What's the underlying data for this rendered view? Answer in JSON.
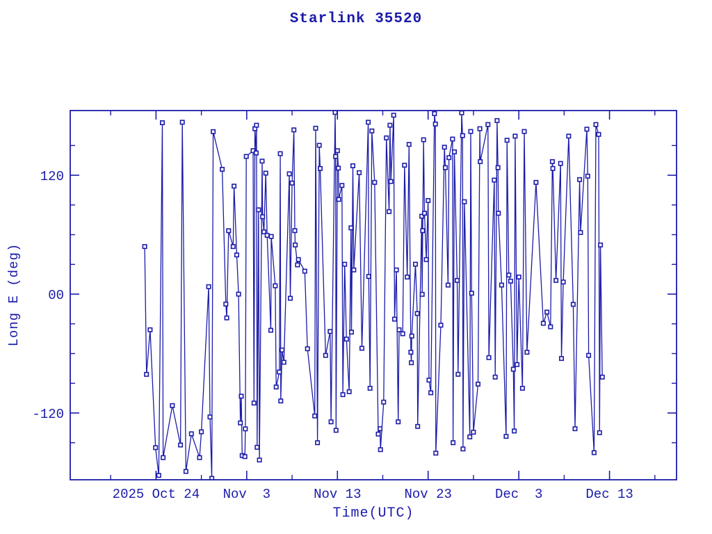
{
  "page": {
    "background": "#ffffff",
    "ink": "#1b1baa"
  },
  "chart_data": {
    "type": "line",
    "title": "Starlink 35520",
    "xlabel": "Time(UTC)",
    "ylabel": "Long E (deg)",
    "x_unit": "days relative to 2025 Oct 24",
    "xlim": [
      -9.46,
      57.39
    ],
    "ylim": [
      -187.4,
      185.3
    ],
    "grid": false,
    "legend": "none",
    "marker": "open-square",
    "x_major_ticks": [
      {
        "day": 0,
        "label": "2025 Oct 24"
      },
      {
        "day": 10,
        "label": "Nov  3"
      },
      {
        "day": 20,
        "label": "Nov 13"
      },
      {
        "day": 30,
        "label": "Nov 23"
      },
      {
        "day": 40,
        "label": "Dec  3"
      },
      {
        "day": 50,
        "label": "Dec 13"
      }
    ],
    "x_minor_ticks": [
      -5,
      5,
      15,
      25,
      35,
      45,
      55
    ],
    "y_major_ticks": [
      {
        "value": 120,
        "label": "120"
      },
      {
        "value": 0,
        "label": "00"
      },
      {
        "value": -120,
        "label": "-120"
      }
    ],
    "y_minor_ticks": [
      150,
      90,
      60,
      30,
      -30,
      -60,
      -90,
      -150
    ],
    "points": [
      [
        -1.25,
        48
      ],
      [
        -1.05,
        -81
      ],
      [
        -0.65,
        -36
      ],
      [
        -0.05,
        -155
      ],
      [
        0.3,
        -183
      ],
      [
        0.7,
        173
      ],
      [
        0.78,
        -165
      ],
      [
        1.8,
        -112.5
      ],
      [
        2.7,
        -152.3
      ],
      [
        2.9,
        173.5
      ],
      [
        3.3,
        -179
      ],
      [
        3.9,
        -141
      ],
      [
        4.8,
        -165
      ],
      [
        5.0,
        -139
      ],
      [
        5.8,
        7.5
      ],
      [
        5.95,
        -124
      ],
      [
        6.15,
        -186
      ],
      [
        6.3,
        164
      ],
      [
        7.3,
        126
      ],
      [
        7.7,
        -10
      ],
      [
        7.8,
        -24
      ],
      [
        8.0,
        64
      ],
      [
        8.5,
        48
      ],
      [
        8.6,
        109
      ],
      [
        8.9,
        39.5
      ],
      [
        9.1,
        0
      ],
      [
        9.3,
        -130
      ],
      [
        9.4,
        -103
      ],
      [
        9.5,
        -163
      ],
      [
        9.8,
        -164
      ],
      [
        9.85,
        -136
      ],
      [
        9.95,
        139
      ],
      [
        10.7,
        144.8
      ],
      [
        10.8,
        -110
      ],
      [
        10.9,
        167
      ],
      [
        11.05,
        142.5
      ],
      [
        11.08,
        170.5
      ],
      [
        11.15,
        -154.6
      ],
      [
        11.3,
        85.1
      ],
      [
        11.4,
        -167.5
      ],
      [
        11.7,
        134.3
      ],
      [
        11.75,
        78.1
      ],
      [
        11.9,
        62.9
      ],
      [
        12.1,
        122.1
      ],
      [
        12.25,
        59.4
      ],
      [
        12.66,
        -36.5
      ],
      [
        12.7,
        58.2
      ],
      [
        13.15,
        8.4
      ],
      [
        13.25,
        -93.8
      ],
      [
        13.6,
        -78.6
      ],
      [
        13.7,
        141.8
      ],
      [
        13.75,
        -107.9
      ],
      [
        13.9,
        -56.4
      ],
      [
        14.1,
        -68.8
      ],
      [
        14.7,
        121.4
      ],
      [
        14.8,
        -4.2
      ],
      [
        15.0,
        112.1
      ],
      [
        15.2,
        165.8
      ],
      [
        15.3,
        64.1
      ],
      [
        15.35,
        49.6
      ],
      [
        15.6,
        29.5
      ],
      [
        15.7,
        34.9
      ],
      [
        16.4,
        23.2
      ],
      [
        16.7,
        -55.2
      ],
      [
        17.5,
        -123
      ],
      [
        17.6,
        167.5
      ],
      [
        17.8,
        -150
      ],
      [
        18.0,
        150.2
      ],
      [
        18.1,
        126.8
      ],
      [
        18.7,
        -61.8
      ],
      [
        19.2,
        -37.7
      ],
      [
        19.3,
        -128.9
      ],
      [
        19.75,
        183.4
      ],
      [
        19.8,
        139
      ],
      [
        19.85,
        -137.5
      ],
      [
        20.0,
        144.8
      ],
      [
        20.1,
        127.2
      ],
      [
        20.15,
        95.6
      ],
      [
        20.5,
        109.7
      ],
      [
        20.6,
        -101.5
      ],
      [
        20.8,
        30.2
      ],
      [
        21.0,
        -45.4
      ],
      [
        21.3,
        -98.5
      ],
      [
        21.5,
        66.9
      ],
      [
        21.55,
        -38.4
      ],
      [
        21.7,
        129.6
      ],
      [
        21.8,
        24.4
      ],
      [
        22.4,
        122.6
      ],
      [
        22.7,
        -54.7
      ],
      [
        23.4,
        173.5
      ],
      [
        23.45,
        17.8
      ],
      [
        23.6,
        -95
      ],
      [
        23.8,
        164.7
      ],
      [
        24.1,
        112.8
      ],
      [
        24.5,
        -141.3
      ],
      [
        24.7,
        -135.9
      ],
      [
        24.75,
        -157
      ],
      [
        25.1,
        -109
      ],
      [
        25.4,
        157.7
      ],
      [
        25.7,
        83.3
      ],
      [
        25.8,
        170.5
      ],
      [
        25.9,
        113.7
      ],
      [
        26.2,
        180.6
      ],
      [
        26.3,
        -25.3
      ],
      [
        26.5,
        24.4
      ],
      [
        26.7,
        -128.9
      ],
      [
        26.8,
        -36
      ],
      [
        27.2,
        -40
      ],
      [
        27.4,
        130.1
      ],
      [
        27.7,
        17.3
      ],
      [
        27.9,
        151.1
      ],
      [
        28.1,
        -58.7
      ],
      [
        28.15,
        -69.3
      ],
      [
        28.2,
        -42.3
      ],
      [
        28.6,
        30.2
      ],
      [
        28.8,
        -19.6
      ],
      [
        28.85,
        -133.6
      ],
      [
        29.3,
        78.6
      ],
      [
        29.35,
        -0.2
      ],
      [
        29.4,
        64.1
      ],
      [
        29.5,
        155.8
      ],
      [
        29.6,
        81.6
      ],
      [
        29.8,
        34.9
      ],
      [
        30.0,
        94.5
      ],
      [
        30.1,
        -86.8
      ],
      [
        30.3,
        -99.6
      ],
      [
        30.7,
        182.2
      ],
      [
        30.8,
        171.7
      ],
      [
        30.85,
        -160.5
      ],
      [
        31.4,
        -31.4
      ],
      [
        31.8,
        148.3
      ],
      [
        31.9,
        127.7
      ],
      [
        32.2,
        9.1
      ],
      [
        32.3,
        137.8
      ],
      [
        32.7,
        156.5
      ],
      [
        32.75,
        -150
      ],
      [
        32.9,
        143.6
      ],
      [
        33.2,
        13.8
      ],
      [
        33.3,
        -80.9
      ],
      [
        33.7,
        183
      ],
      [
        33.8,
        160
      ],
      [
        33.85,
        -156.3
      ],
      [
        34.0,
        93.3
      ],
      [
        34.6,
        -144.1
      ],
      [
        34.7,
        164.2
      ],
      [
        34.8,
        0.9
      ],
      [
        35.0,
        -139.4
      ],
      [
        35.5,
        -90.8
      ],
      [
        35.7,
        167
      ],
      [
        35.75,
        133.8
      ],
      [
        36.6,
        171.2
      ],
      [
        36.7,
        -64.1
      ],
      [
        37.3,
        115.1
      ],
      [
        37.4,
        -83.7
      ],
      [
        37.6,
        175.2
      ],
      [
        37.7,
        127.7
      ],
      [
        37.75,
        81.6
      ],
      [
        38.1,
        9.1
      ],
      [
        38.6,
        -143.6
      ],
      [
        38.7,
        155.3
      ],
      [
        38.9,
        19.2
      ],
      [
        39.1,
        13.1
      ],
      [
        39.4,
        -75.8
      ],
      [
        39.5,
        -138.2
      ],
      [
        39.6,
        159.5
      ],
      [
        39.8,
        -71.1
      ],
      [
        40.0,
        17.3
      ],
      [
        40.4,
        -95
      ],
      [
        40.6,
        164.2
      ],
      [
        40.9,
        -58.7
      ],
      [
        41.9,
        112.8
      ],
      [
        42.7,
        -29.5
      ],
      [
        43.1,
        -18.2
      ],
      [
        43.5,
        -33
      ],
      [
        43.7,
        133.8
      ],
      [
        43.75,
        126.8
      ],
      [
        44.1,
        13.8
      ],
      [
        44.6,
        131.9
      ],
      [
        44.7,
        -65
      ],
      [
        44.9,
        12.2
      ],
      [
        45.5,
        159.5
      ],
      [
        46.0,
        -10.3
      ],
      [
        46.2,
        -135.9
      ],
      [
        46.7,
        115.6
      ],
      [
        46.8,
        62.2
      ],
      [
        47.5,
        166.5
      ],
      [
        47.6,
        119.1
      ],
      [
        47.7,
        -61.8
      ],
      [
        48.3,
        -160
      ],
      [
        48.5,
        171.2
      ],
      [
        48.8,
        161.2
      ],
      [
        48.9,
        -139.9
      ],
      [
        49.0,
        49.6
      ],
      [
        49.2,
        -83.7
      ]
    ]
  }
}
